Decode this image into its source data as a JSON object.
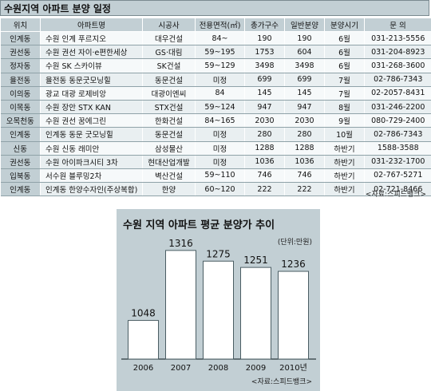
{
  "table": {
    "title": "수원지역 아파트 분양 일정",
    "headers": [
      "위치",
      "아파트명",
      "시공사",
      "전용면적(㎡)",
      "총가구수",
      "일반분양",
      "분양시기",
      "문    의"
    ],
    "rows": [
      [
        "인계동",
        "수원 인계 푸르지오",
        "대우건설",
        "84~",
        "190",
        "190",
        "6월",
        "031-213-5556"
      ],
      [
        "권선동",
        "수원 권선 자이·e편한세상",
        "GS·대림",
        "59~195",
        "1753",
        "604",
        "6월",
        "031-204-8923"
      ],
      [
        "정자동",
        "수원 SK 스카이뷰",
        "SK건설",
        "59~129",
        "3498",
        "3498",
        "6월",
        "031-268-3600"
      ],
      [
        "율전동",
        "율전동 동문굿모닝힐",
        "동문건설",
        "미정",
        "699",
        "699",
        "7월",
        "02-786-7343"
      ],
      [
        "이의동",
        "광교 대광 로제비앙",
        "대광이엔씨",
        "84",
        "145",
        "145",
        "7월",
        "02-2057-8431"
      ],
      [
        "이목동",
        "수원 장안 STX KAN",
        "STX건설",
        "59~124",
        "947",
        "947",
        "8월",
        "031-246-2200"
      ],
      [
        "오목천동",
        "수원 권선 꿈에그린",
        "한화건설",
        "84~165",
        "2030",
        "2030",
        "9월",
        "080-729-2400"
      ],
      [
        "인계동",
        "인계동 동문 굿모닝힐",
        "동문건설",
        "미정",
        "280",
        "280",
        "10월",
        "02-786-7343"
      ],
      [
        "신동",
        "수원 신동 래미안",
        "삼성물산",
        "미정",
        "1288",
        "1288",
        "하반기",
        "1588-3588"
      ],
      [
        "권선동",
        "수원 아이파크시티 3차",
        "현대산업개발",
        "미정",
        "1036",
        "1036",
        "하반기",
        "031-232-1700"
      ],
      [
        "입북동",
        "서수원 블루밍2차",
        "벽산건설",
        "59~110",
        "746",
        "746",
        "하반기",
        "02-767-5271"
      ],
      [
        "인계동",
        "인계동 한양수자인(주상복합)",
        "한양",
        "60~120",
        "222",
        "222",
        "하반기",
        "02-721-8466"
      ]
    ],
    "source": "<자료:스피드뱅크>"
  },
  "chart_data": {
    "type": "bar",
    "title": "수원 지역 아파트 평균 분양가 추이",
    "unit": "(단위:만원)",
    "categories": [
      "2006",
      "2007",
      "2008",
      "2009",
      "2010년"
    ],
    "values": [
      1048,
      1316,
      1275,
      1251,
      1236
    ],
    "ylim": [
      900,
      1340
    ],
    "bar_color": "#ffffff",
    "bar_border": "#4a5d63",
    "source": "<자료:스피드뱅크>"
  }
}
